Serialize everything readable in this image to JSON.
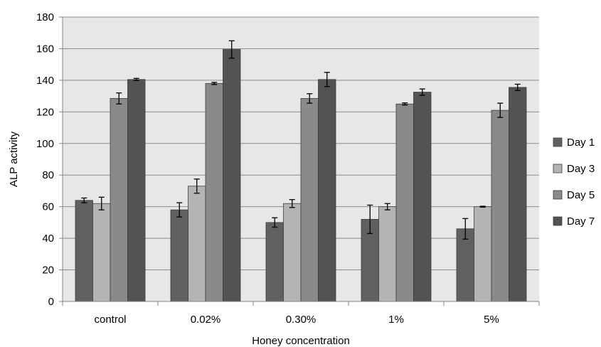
{
  "chart_data": {
    "type": "bar",
    "title": "",
    "xlabel": "Honey concentration",
    "ylabel": "ALP activity",
    "ylim": [
      0,
      180
    ],
    "yticks": [
      0,
      20,
      40,
      60,
      80,
      100,
      120,
      140,
      160,
      180
    ],
    "grid": true,
    "legend_position": "right",
    "categories": [
      "control",
      "0.02%",
      "0.30%",
      "1%",
      "5%"
    ],
    "series": [
      {
        "name": "Day 1",
        "color": "#606060",
        "values": [
          64,
          58,
          50,
          52,
          46
        ],
        "errors": [
          1.5,
          4.5,
          3,
          9,
          6.5
        ]
      },
      {
        "name": "Day 3",
        "color": "#b4b4b4",
        "values": [
          62,
          73,
          62,
          60,
          60
        ],
        "errors": [
          4,
          4.5,
          2.5,
          2,
          0.3
        ]
      },
      {
        "name": "Day 5",
        "color": "#8a8a8a",
        "values": [
          128.5,
          138,
          128.5,
          125,
          121
        ],
        "errors": [
          3.5,
          0.7,
          3,
          0.7,
          4.5
        ]
      },
      {
        "name": "Day 7",
        "color": "#535353",
        "values": [
          140.5,
          159.5,
          140.5,
          132.5,
          135.5
        ],
        "errors": [
          0.7,
          5.5,
          4.5,
          2,
          2
        ]
      }
    ]
  }
}
